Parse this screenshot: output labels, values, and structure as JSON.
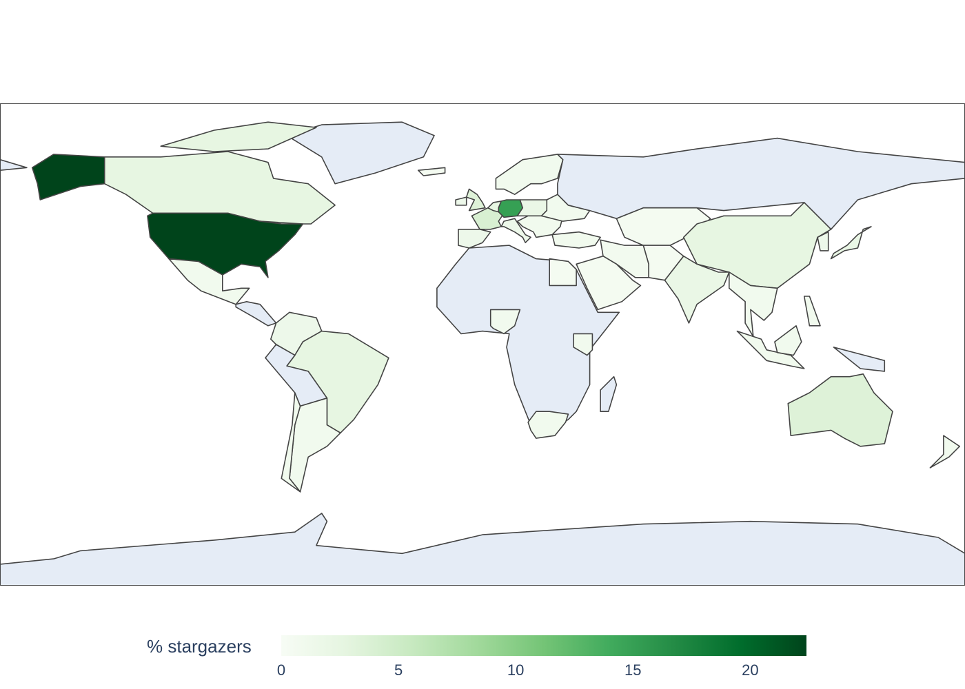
{
  "chart_data": {
    "type": "choropleth",
    "projection": "equirectangular",
    "colorscale": "Greens",
    "colorscale_stops": [
      "#f7fcf5",
      "#e5f5e0",
      "#c7e9c0",
      "#a1d99b",
      "#74c476",
      "#41ab5d",
      "#238b45",
      "#006d2c",
      "#00441b"
    ],
    "no_data_color": "#e5ecf6",
    "border_color": "#444444",
    "colorbar": {
      "title": "% stargazers",
      "range": [
        0,
        22.4
      ],
      "ticks": [
        "0",
        "5",
        "10",
        "15",
        "20"
      ],
      "tick_values": [
        0,
        5,
        10,
        15,
        20
      ],
      "orientation": "horizontal",
      "placement": "bottom"
    },
    "values": {
      "USA": 22.4,
      "DEU": 15,
      "FRA": 4,
      "GBR": 3.5,
      "IRL": 1.5,
      "BNL": 2.5,
      "AUS": 3.5,
      "CAN": 2.5,
      "CHN": 2.5,
      "BRA": 2.5,
      "IND": 2,
      "JPN": 2,
      "ESP": 1.5,
      "ITA": 1.5,
      "CEU": 2,
      "SCA": 1,
      "BAL": 1,
      "UKR": 1,
      "TUR": 1,
      "MEX": 1,
      "COL": 1.5,
      "ARG": 1,
      "CHL": 1,
      "IRN": 0.8,
      "SAU": 0.5,
      "KAZ": 0.5,
      "SEA": 1,
      "IDN": 1,
      "PHL": 1,
      "NGA": 1,
      "KEN": 1,
      "ZAF": 1,
      "EGY": 0.5,
      "NZL": 1,
      "ISL": 0.5,
      "PAK": 0.5,
      "KOR": 1.5
    }
  }
}
